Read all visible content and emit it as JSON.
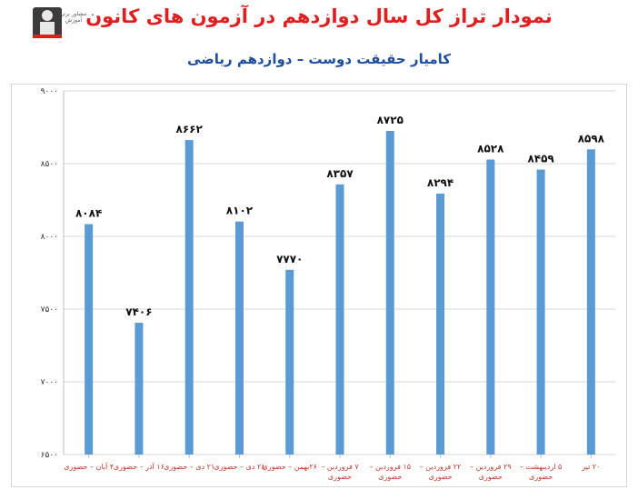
{
  "header": {
    "title": "نمودار تراز کل سال دوازدهم در آزمون های کانون",
    "subtitle": "کامیار حقیقت دوست – دوازدهم ریاضی",
    "logo_text": "مشاور برتر آموزش"
  },
  "colors": {
    "bar": "#5b9bd5",
    "title": "#e01e1e",
    "subtitle": "#1f4e9c",
    "grid": "#d9d9d9",
    "category_text": "#c0392b"
  },
  "chart_data": {
    "type": "bar",
    "title": "نمودار تراز کل سال دوازدهم در آزمون های کانون",
    "subtitle": "کامیار حقیقت دوست – دوازدهم ریاضی",
    "xlabel": "",
    "ylabel": "",
    "ylim": [
      6500,
      9000
    ],
    "yticks": [
      {
        "value": 6500,
        "label": "۶۵۰۰"
      },
      {
        "value": 7000,
        "label": "۷۰۰۰"
      },
      {
        "value": 7500,
        "label": "۷۵۰۰"
      },
      {
        "value": 8000,
        "label": "۸۰۰۰"
      },
      {
        "value": 8500,
        "label": "۸۵۰۰"
      },
      {
        "value": 9000,
        "label": "۹۰۰۰"
      }
    ],
    "grid": true,
    "legend": "none",
    "categories": [
      [
        "۴ آبان – حضوری"
      ],
      [
        "۱۶ آذر – حضوری"
      ],
      [
        "۲۱ دی – حضوری"
      ],
      [
        "۲۸ دی – حضوری"
      ],
      [
        "۲۶بهمن – حضوری"
      ],
      [
        "۷ فروردین –",
        "حضوری"
      ],
      [
        "۱۵ فروردین –",
        "حضوری"
      ],
      [
        "۲۲ فروردین –",
        "حضوری"
      ],
      [
        "۲۹ فروردین –",
        "حضوری"
      ],
      [
        "۵ اردیبهشت –",
        "حضوری"
      ],
      [
        "۲۰ تیر"
      ]
    ],
    "values": [
      8084,
      7406,
      8662,
      8102,
      7770,
      8357,
      8725,
      8294,
      8528,
      8459,
      8598
    ],
    "value_labels": [
      "۸۰۸۴",
      "۷۴۰۶",
      "۸۶۶۲",
      "۸۱۰۲",
      "۷۷۷۰",
      "۸۳۵۷",
      "۸۷۲۵",
      "۸۲۹۴",
      "۸۵۲۸",
      "۸۴۵۹",
      "۸۵۹۸"
    ]
  }
}
